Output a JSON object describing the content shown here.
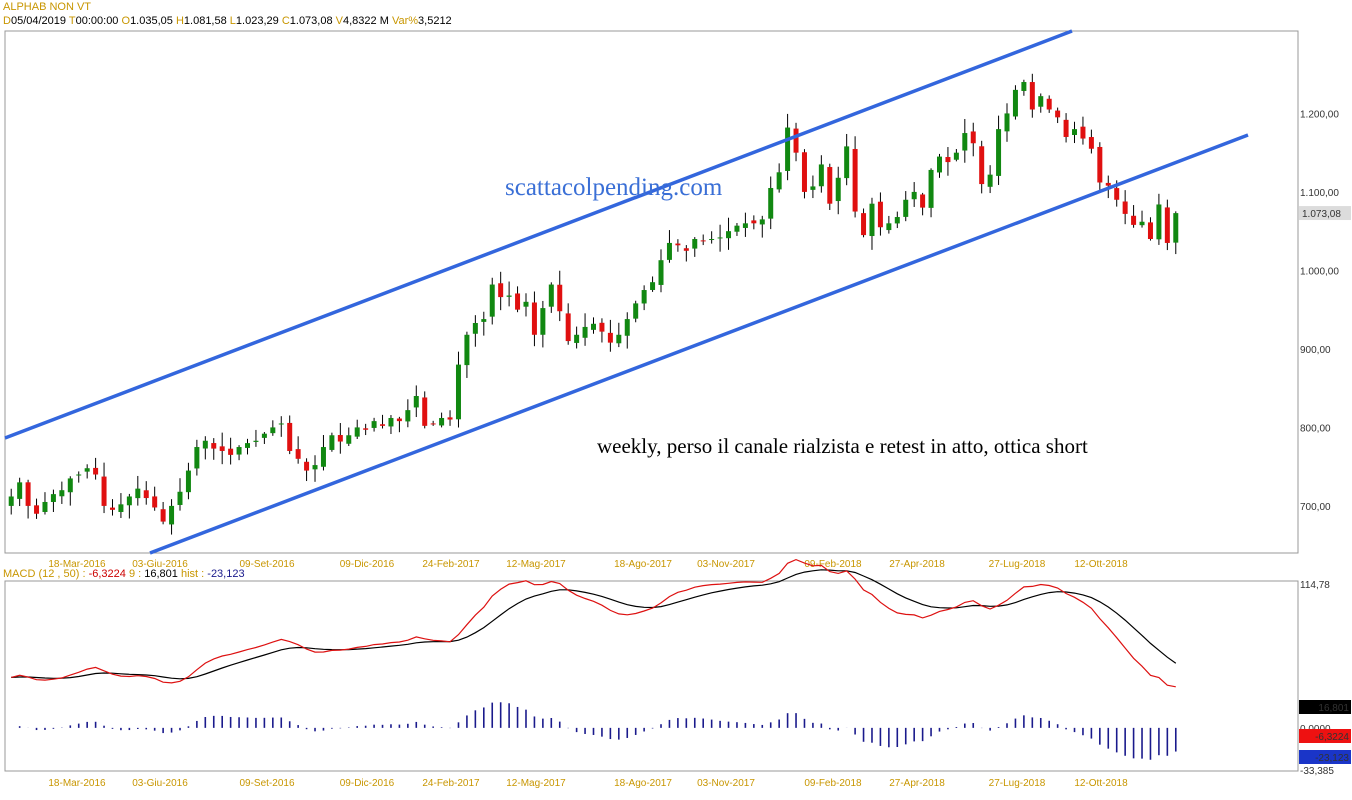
{
  "header": {
    "symbol": "ALPHAB NON VT",
    "date_label": "D",
    "date": "05/04/2019",
    "time_label": "T",
    "time": "00:00:00",
    "open_label": "O",
    "open": "1.035,05",
    "high_label": "H",
    "high": "1.081,58",
    "low_label": "L",
    "low": "1.023,29",
    "close_label": "C",
    "close": "1.073,08",
    "volume_label": "V",
    "volume": "4,8322 M",
    "varpct_label": "Var%",
    "varpct": "3,5212"
  },
  "macd_header": {
    "name": "MACD",
    "params": "(12 , 50) :",
    "macd": "-6,3224",
    "signal_label": "9 :",
    "signal": "16,801",
    "hist_label": "hist :",
    "hist": "-23,123"
  },
  "annotations": {
    "watermark": "scattacolpending.com",
    "comment": "weekly, perso il canale rialzista e retest in atto, ottica short"
  },
  "colors": {
    "up": "#118811",
    "down": "#e01010",
    "channel": "#3366dd",
    "macd_line": "#dd1111",
    "signal_line": "#000000",
    "hist": "#1a1a8c",
    "axis_label": "#c89600"
  },
  "chart_data": [
    {
      "type": "candlestick",
      "title": "ALPHAB NON VT",
      "timeframe": "weekly",
      "x_tick_labels": [
        "18-Mar-2016",
        "03-Giu-2016",
        "09-Set-2016",
        "09-Dic-2016",
        "24-Feb-2017",
        "12-Mag-2017",
        "18-Ago-2017",
        "03-Nov-2017",
        "09-Feb-2018",
        "27-Apr-2018",
        "27-Lug-2018",
        "12-Ott-2018"
      ],
      "y_tick_labels": [
        "700,00",
        "800,00",
        "900,00",
        "1.000,00",
        "1.100,00",
        "1.200,00"
      ],
      "y_ticks": [
        700,
        800,
        900,
        1000,
        1100,
        1200
      ],
      "ylim": [
        640,
        1305
      ],
      "last_price_label": "1.073,08",
      "last_price": 1073.08,
      "closes": [
        712,
        730,
        700,
        690,
        705,
        715,
        720,
        735,
        740,
        748,
        740,
        700,
        695,
        702,
        712,
        722,
        710,
        698,
        680,
        700,
        718,
        745,
        775,
        783,
        773,
        770,
        765,
        775,
        780,
        783,
        792,
        800,
        805,
        770,
        760,
        745,
        752,
        775,
        790,
        782,
        790,
        800,
        797,
        808,
        802,
        812,
        808,
        822,
        840,
        802,
        805,
        812,
        810,
        880,
        918,
        933,
        938,
        982,
        966,
        968,
        950,
        960,
        918,
        952,
        982,
        948,
        910,
        918,
        928,
        932,
        922,
        908,
        918,
        938,
        958,
        975,
        985,
        1013,
        1035,
        1032,
        1025,
        1040,
        1038,
        1040,
        1042,
        1050,
        1057,
        1060,
        1060,
        1065,
        1105,
        1125,
        1182,
        1150,
        1100,
        1107,
        1135,
        1085,
        1118,
        1158,
        1075,
        1045,
        1085,
        1055,
        1060,
        1068,
        1090,
        1100,
        1080,
        1128,
        1145,
        1138,
        1150,
        1175,
        1162,
        1110,
        1122,
        1180,
        1200,
        1230,
        1240,
        1205,
        1222,
        1205,
        1195,
        1170,
        1180,
        1168,
        1155,
        1112,
        1108,
        1090,
        1072,
        1058,
        1062,
        1040,
        1084,
        1035,
        1073
      ],
      "series": [
        {
          "name": "MACD (12,50)",
          "last": -6.3224
        },
        {
          "name": "Signal (9)",
          "last": 16.801
        },
        {
          "name": "Histogram",
          "last": -23.123
        }
      ]
    },
    {
      "type": "line",
      "title": "MACD",
      "y_tick_labels": [
        "114,78",
        "0,0000",
        "-33,385"
      ],
      "ylim": [
        -33.385,
        114.78
      ],
      "x_tick_labels": [
        "18-Mar-2016",
        "03-Giu-2016",
        "09-Set-2016",
        "09-Dic-2016",
        "24-Feb-2017",
        "12-Mag-2017",
        "18-Ago-2017",
        "03-Nov-2017",
        "09-Feb-2018",
        "27-Apr-2018",
        "27-Lug-2018",
        "12-Ott-2018"
      ],
      "value_labels": {
        "signal": "16,801",
        "macd": "-6,3224",
        "hist": "-23,123"
      }
    }
  ]
}
